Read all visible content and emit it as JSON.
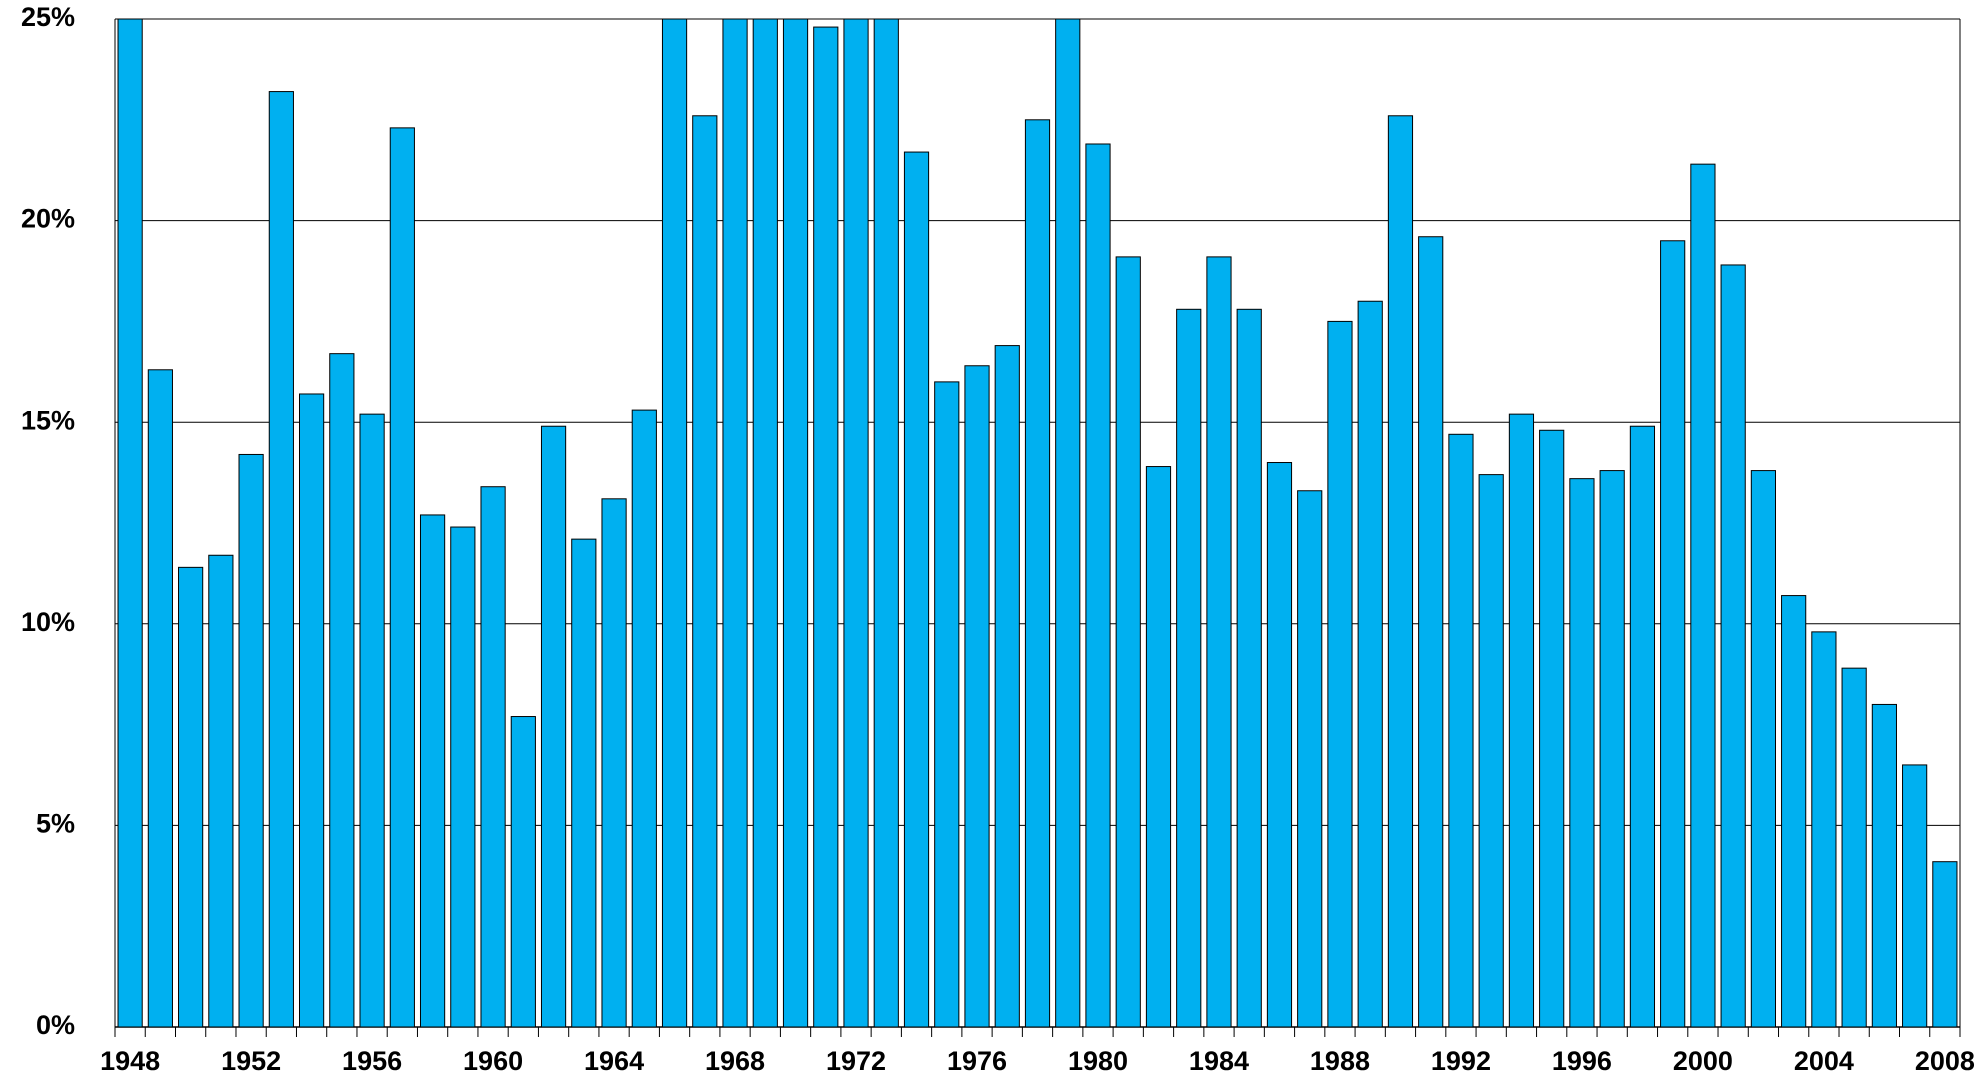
{
  "chart_data": {
    "type": "bar",
    "categories": [
      "1948",
      null,
      null,
      null,
      "1952",
      null,
      null,
      null,
      "1956",
      null,
      null,
      null,
      "1960",
      null,
      null,
      null,
      "1964",
      null,
      null,
      null,
      "1968",
      null,
      null,
      null,
      "1972",
      null,
      null,
      null,
      "1976",
      null,
      null,
      null,
      "1980",
      null,
      null,
      null,
      "1984",
      null,
      null,
      null,
      "1988",
      null,
      null,
      null,
      "1992",
      null,
      null,
      null,
      "1996",
      null,
      null,
      null,
      "2000",
      null,
      null,
      null,
      "2004",
      null,
      null,
      null,
      "2008"
    ],
    "values": [
      25,
      16.3,
      11.4,
      11.7,
      14.2,
      23.2,
      15.7,
      16.7,
      15.2,
      22.3,
      12.7,
      12.4,
      13.4,
      7.7,
      14.9,
      12.1,
      13.1,
      15.3,
      25,
      22.6,
      25,
      25,
      25,
      24.8,
      25,
      25,
      21.7,
      16.0,
      16.4,
      16.9,
      22.5,
      25,
      21.9,
      19.1,
      13.9,
      17.8,
      19.1,
      17.8,
      14.0,
      13.3,
      17.5,
      18.0,
      22.6,
      19.6,
      14.7,
      13.7,
      15.2,
      14.8,
      13.6,
      13.8,
      14.9,
      19.5,
      21.4,
      18.9,
      13.8,
      10.7,
      9.8,
      8.9,
      8.0,
      6.5,
      4.1
    ],
    "color": "#00b0f0",
    "ylim": [
      0,
      25
    ],
    "yticks": [
      {
        "value": 0,
        "label": "0%"
      },
      {
        "value": 5,
        "label": "5%"
      },
      {
        "value": 10,
        "label": "10%"
      },
      {
        "value": 15,
        "label": "15%"
      },
      {
        "value": 20,
        "label": "20%"
      },
      {
        "value": 25,
        "label": "25%"
      }
    ],
    "grid": true
  }
}
